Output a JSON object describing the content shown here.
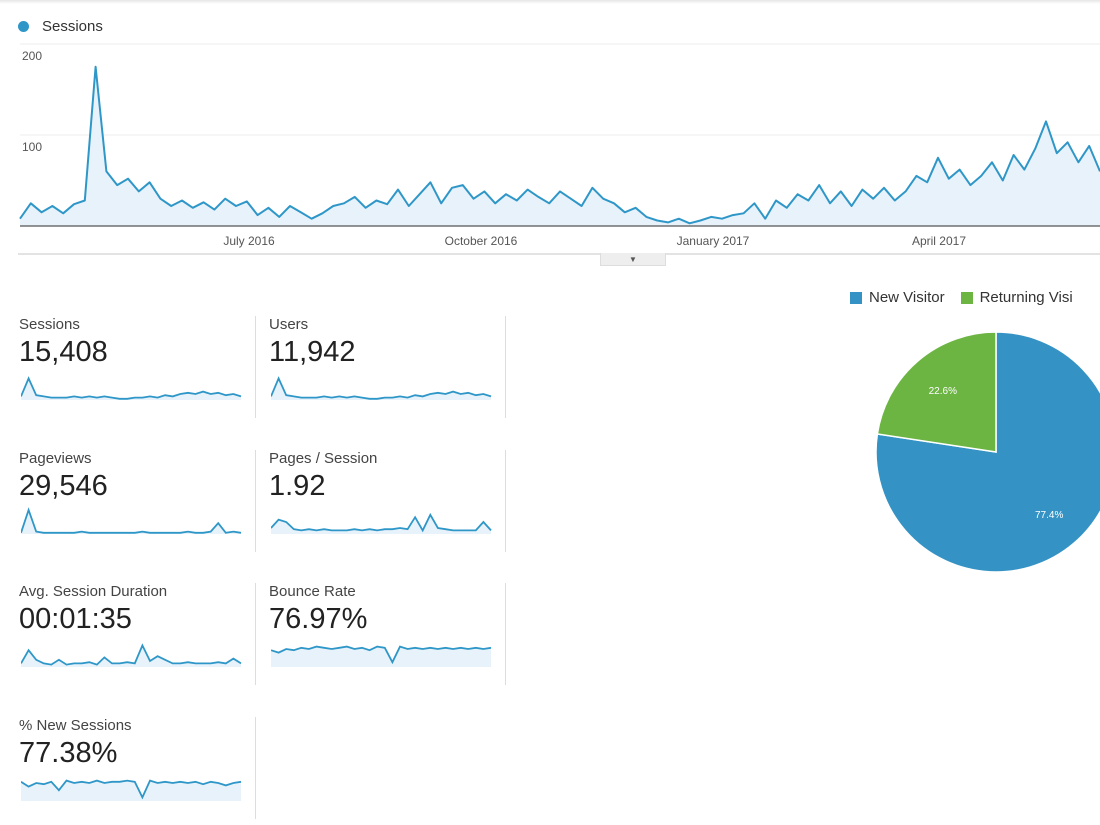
{
  "chart_data": [
    {
      "type": "area",
      "legend": "Sessions",
      "legend_placement": "top-left",
      "color": "#2f97c8",
      "y_ticks": [
        "200",
        "100"
      ],
      "ylim": [
        0,
        200
      ],
      "x_ticks": [
        "July 2016",
        "October 2016",
        "January 2017",
        "April 2017"
      ],
      "grid": true,
      "values": [
        8,
        25,
        15,
        22,
        14,
        24,
        28,
        175,
        60,
        45,
        52,
        38,
        48,
        30,
        22,
        28,
        20,
        26,
        18,
        30,
        22,
        27,
        12,
        20,
        10,
        22,
        15,
        8,
        14,
        22,
        25,
        32,
        20,
        28,
        24,
        40,
        22,
        35,
        48,
        25,
        42,
        45,
        30,
        38,
        25,
        35,
        28,
        40,
        32,
        25,
        38,
        30,
        22,
        42,
        30,
        25,
        15,
        20,
        10,
        6,
        4,
        8,
        3,
        6,
        10,
        8,
        12,
        14,
        25,
        8,
        28,
        20,
        35,
        28,
        45,
        25,
        38,
        22,
        40,
        30,
        42,
        28,
        38,
        55,
        48,
        75,
        52,
        62,
        45,
        55,
        70,
        50,
        78,
        62,
        85,
        115,
        80,
        92,
        70,
        88,
        60
      ]
    },
    {
      "type": "pie",
      "legend_placement": "top",
      "slices": [
        {
          "name": "New Visitor",
          "value": 77.4,
          "label": "77.4%",
          "color": "#3493c4"
        },
        {
          "name": "Returning Visi",
          "value": 22.6,
          "label": "22.6%",
          "color": "#6cb543"
        }
      ]
    }
  ],
  "toggle_icon": "caret-down",
  "metrics": [
    {
      "label": "Sessions",
      "value": "15,408",
      "spark": [
        3,
        18,
        4,
        3,
        2,
        2,
        2,
        3,
        2,
        3,
        2,
        3,
        2,
        1,
        1,
        2,
        2,
        3,
        2,
        4,
        3,
        5,
        6,
        5,
        7,
        5,
        6,
        4,
        5,
        3
      ]
    },
    {
      "label": "Users",
      "value": "11,942",
      "spark": [
        3,
        18,
        4,
        3,
        2,
        2,
        2,
        3,
        2,
        3,
        2,
        3,
        2,
        1,
        1,
        2,
        2,
        3,
        2,
        4,
        3,
        5,
        6,
        5,
        7,
        5,
        6,
        4,
        5,
        3
      ]
    },
    {
      "label": "Pageviews",
      "value": "29,546",
      "spark": [
        1,
        20,
        2,
        1,
        1,
        1,
        1,
        1,
        2,
        1,
        1,
        1,
        1,
        1,
        1,
        1,
        2,
        1,
        1,
        1,
        1,
        1,
        2,
        1,
        1,
        2,
        9,
        1,
        2,
        1
      ]
    },
    {
      "label": "Pages / Session",
      "value": "1.92",
      "spark": [
        5,
        12,
        10,
        4,
        3,
        4,
        3,
        4,
        3,
        3,
        3,
        4,
        3,
        4,
        3,
        4,
        4,
        5,
        4,
        14,
        3,
        16,
        5,
        4,
        3,
        3,
        3,
        3,
        10,
        3
      ]
    },
    {
      "label": "Avg. Session Duration",
      "value": "00:01:35",
      "spark": [
        3,
        14,
        6,
        3,
        2,
        6,
        2,
        3,
        3,
        4,
        2,
        8,
        3,
        3,
        4,
        3,
        18,
        5,
        9,
        6,
        3,
        3,
        4,
        3,
        3,
        3,
        4,
        3,
        7,
        3
      ]
    },
    {
      "label": "Bounce Rate",
      "value": "76.97%",
      "spark": [
        14,
        12,
        15,
        14,
        16,
        15,
        17,
        16,
        15,
        16,
        17,
        15,
        16,
        14,
        17,
        16,
        4,
        17,
        15,
        16,
        15,
        16,
        15,
        16,
        15,
        16,
        15,
        16,
        15,
        16
      ]
    },
    {
      "label": "% New Sessions",
      "value": "77.38%",
      "spark": [
        16,
        12,
        15,
        14,
        16,
        9,
        17,
        15,
        16,
        15,
        17,
        15,
        16,
        16,
        17,
        16,
        3,
        17,
        15,
        16,
        15,
        16,
        15,
        16,
        14,
        16,
        15,
        13,
        15,
        16
      ]
    }
  ]
}
